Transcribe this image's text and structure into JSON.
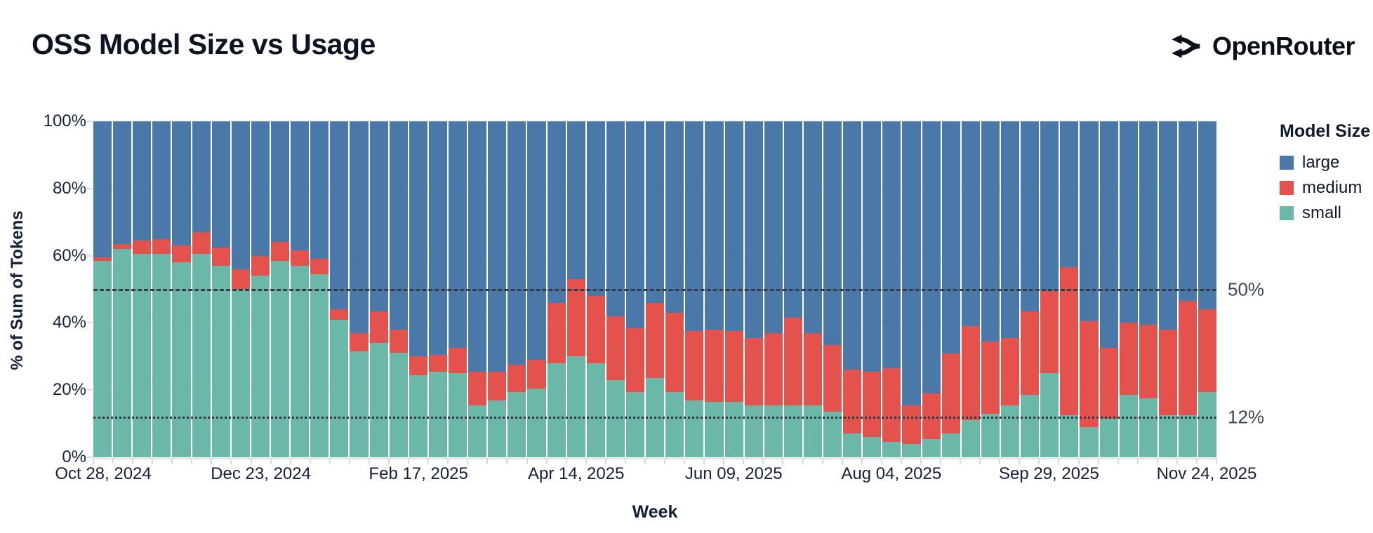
{
  "header": {
    "title": "OSS Model Size vs Usage",
    "brand": "OpenRouter"
  },
  "chart_data": {
    "type": "bar",
    "stacked": true,
    "title": "OSS Model Size vs Usage",
    "xlabel": "Week",
    "ylabel": "% of Sum of Tokens",
    "ylim": [
      0,
      100
    ],
    "grid": true,
    "legend_position": "right",
    "legend_title": "Model Size",
    "y_ticks": [
      {
        "label": "100%",
        "value": 100
      },
      {
        "label": "80%",
        "value": 80
      },
      {
        "label": "60%",
        "value": 60
      },
      {
        "label": "40%",
        "value": 40
      },
      {
        "label": "20%",
        "value": 20
      },
      {
        "label": "0%",
        "value": 0
      }
    ],
    "x_tick_every": 8,
    "x_tick_labels": [
      "Oct 28, 2024",
      "Dec 23, 2024",
      "Feb 17, 2025",
      "Apr 14, 2025",
      "Jun 09, 2025",
      "Aug 04, 2025",
      "Sep 29, 2025",
      "Nov 24, 2025"
    ],
    "categories": [
      "Oct 28, 2024",
      "Nov 04, 2024",
      "Nov 11, 2024",
      "Nov 18, 2024",
      "Nov 25, 2024",
      "Dec 02, 2024",
      "Dec 09, 2024",
      "Dec 16, 2024",
      "Dec 23, 2024",
      "Dec 30, 2024",
      "Jan 06, 2025",
      "Jan 13, 2025",
      "Jan 20, 2025",
      "Jan 27, 2025",
      "Feb 03, 2025",
      "Feb 10, 2025",
      "Feb 17, 2025",
      "Feb 24, 2025",
      "Mar 03, 2025",
      "Mar 10, 2025",
      "Mar 17, 2025",
      "Mar 24, 2025",
      "Mar 31, 2025",
      "Apr 07, 2025",
      "Apr 14, 2025",
      "Apr 21, 2025",
      "Apr 28, 2025",
      "May 05, 2025",
      "May 12, 2025",
      "May 19, 2025",
      "May 26, 2025",
      "Jun 02, 2025",
      "Jun 09, 2025",
      "Jun 16, 2025",
      "Jun 23, 2025",
      "Jun 30, 2025",
      "Jul 07, 2025",
      "Jul 14, 2025",
      "Jul 21, 2025",
      "Jul 28, 2025",
      "Aug 04, 2025",
      "Aug 11, 2025",
      "Aug 18, 2025",
      "Aug 25, 2025",
      "Sep 01, 2025",
      "Sep 08, 2025",
      "Sep 15, 2025",
      "Sep 22, 2025",
      "Sep 29, 2025",
      "Oct 06, 2025",
      "Oct 13, 2025",
      "Oct 20, 2025",
      "Oct 27, 2025",
      "Nov 03, 2025",
      "Nov 10, 2025",
      "Nov 17, 2025",
      "Nov 24, 2025"
    ],
    "series": [
      {
        "name": "large",
        "color": "#4a78a8",
        "values": [
          40.5,
          36.5,
          35.5,
          35,
          37,
          33,
          37.5,
          44,
          40,
          36,
          38.5,
          41,
          56,
          63,
          56.5,
          62,
          70,
          69.5,
          67.5,
          74.5,
          74.5,
          72.5,
          71,
          54,
          47,
          52,
          58,
          61.5,
          54,
          57,
          62.5,
          62,
          62.5,
          64.5,
          63,
          58.5,
          63,
          66.5,
          74,
          74.5,
          73.5,
          84.5,
          81,
          69,
          61,
          65.5,
          64.5,
          56.5,
          50.5,
          43.5,
          59.5,
          67.5,
          60,
          60.5,
          62,
          53.5,
          56
        ]
      },
      {
        "name": "medium",
        "color": "#e4524e",
        "values": [
          1,
          1.5,
          4,
          4.5,
          5,
          6.5,
          5.5,
          6,
          6,
          5.5,
          4.5,
          4.5,
          3,
          5.5,
          9.5,
          7,
          5.5,
          5,
          7.5,
          10,
          8.5,
          8,
          8.5,
          18,
          23,
          20,
          19,
          19,
          22.5,
          23.5,
          20.5,
          21.5,
          21,
          20,
          21.5,
          26,
          21.5,
          20,
          19,
          19.5,
          22,
          11.5,
          13.5,
          24,
          28,
          21.5,
          20,
          25,
          24.5,
          44,
          31.5,
          21,
          21.5,
          22,
          25.5,
          34,
          24.5
        ]
      },
      {
        "name": "small",
        "color": "#6bb8a9",
        "values": [
          58.5,
          62,
          60.5,
          60.5,
          58,
          60.5,
          57,
          50,
          54,
          58.5,
          57,
          54.5,
          41,
          31.5,
          34,
          31,
          24.5,
          25.5,
          25,
          15.5,
          17,
          19.5,
          20.5,
          28,
          30,
          28,
          23,
          19.5,
          23.5,
          19.5,
          17,
          16.5,
          16.5,
          15.5,
          15.5,
          15.5,
          15.5,
          13.5,
          7,
          6,
          4.5,
          4,
          5.5,
          7,
          11,
          13,
          15.5,
          18.5,
          25,
          12.5,
          9,
          11.5,
          18.5,
          17.5,
          12.5,
          12.5,
          19.5
        ]
      }
    ],
    "reference_lines": [
      {
        "label": "50%",
        "value": 50,
        "style": "dashed"
      },
      {
        "label": "12%",
        "value": 12,
        "style": "dotted"
      }
    ],
    "legend": {
      "title": "Model Size",
      "entries": [
        {
          "label": "large",
          "color": "#4a78a8"
        },
        {
          "label": "medium",
          "color": "#e4524e"
        },
        {
          "label": "small",
          "color": "#6bb8a9"
        }
      ]
    }
  }
}
